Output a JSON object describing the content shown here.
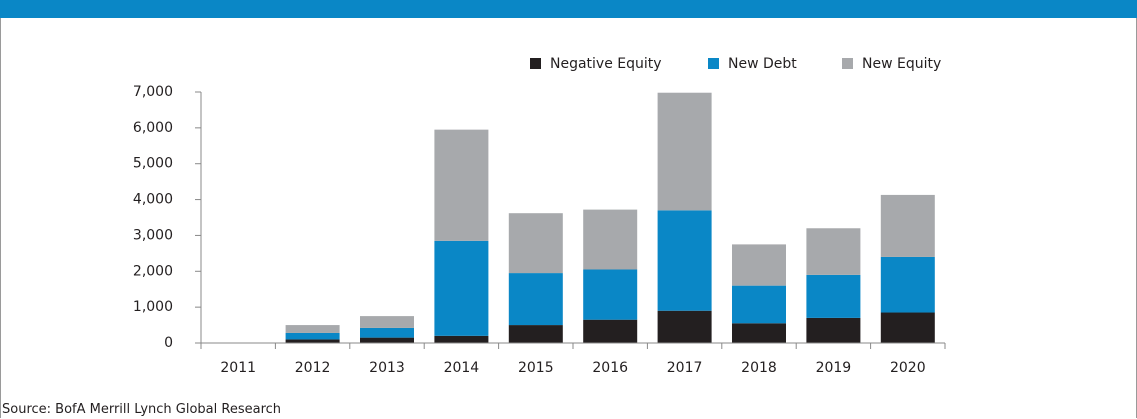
{
  "chart_data": {
    "type": "stacked-bar",
    "categories": [
      "2011",
      "2012",
      "2013",
      "2014",
      "2015",
      "2016",
      "2017",
      "2018",
      "2019",
      "2020"
    ],
    "series": [
      {
        "name": "Negative Equity",
        "color": "#231f20",
        "values": [
          0,
          100,
          150,
          200,
          500,
          650,
          900,
          550,
          700,
          850
        ]
      },
      {
        "name": "New Debt",
        "color": "#0a87c6",
        "values": [
          0,
          180,
          270,
          2650,
          1450,
          1400,
          2800,
          1050,
          1200,
          1550
        ]
      },
      {
        "name": "New Equity",
        "color": "#a7a9ac",
        "values": [
          0,
          220,
          330,
          3100,
          1670,
          1670,
          3280,
          1150,
          1300,
          1730
        ]
      }
    ],
    "ylim": [
      0,
      7000
    ],
    "yticks": [
      0,
      {
        "value": 1000,
        "label": "1,000"
      },
      {
        "value": 2000,
        "label": "2,000"
      },
      {
        "value": 3000,
        "label": "3,000"
      },
      {
        "value": 4000,
        "label": "4,000"
      },
      {
        "value": 5000,
        "label": "5,000"
      },
      {
        "value": 6000,
        "label": "6,000"
      },
      {
        "value": 7000,
        "label": "7,000"
      }
    ],
    "grid": false,
    "legend": "top-right",
    "source": "Source: BofA Merrill Lynch Global Research"
  }
}
